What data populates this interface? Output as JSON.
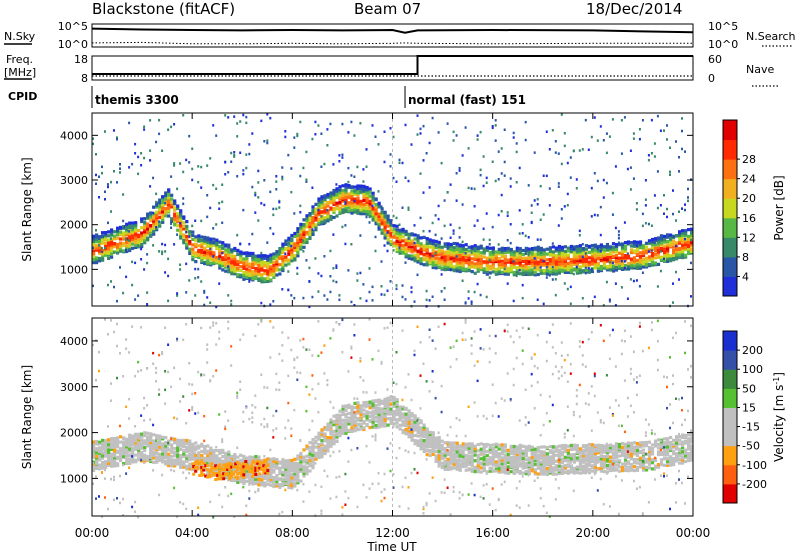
{
  "header": {
    "station": "Blackstone (fitACF)",
    "beam": "Beam 07",
    "date": "18/Dec/2014"
  },
  "chart_data": [
    {
      "type": "line",
      "panel": "nsky-nsearch",
      "left_label": "N.Sky",
      "right_label": "N.Search",
      "left_ticks": [
        "10^5",
        "10^0"
      ],
      "right_ticks": [
        "10^5",
        "10^0"
      ],
      "x": [
        0,
        2,
        4,
        6,
        8,
        10,
        12,
        12.5,
        13,
        16,
        20,
        24
      ],
      "series": [
        {
          "values": [
            4.0,
            3.8,
            3.7,
            3.6,
            3.7,
            3.6,
            3.7,
            3.1,
            3.6,
            3.7,
            3.6,
            3.2
          ]
        },
        {
          "values": [
            0.9,
            1.0,
            0.7,
            0.7,
            0.8,
            0.7,
            0.8,
            0.9,
            0.8,
            0.7,
            0.8,
            0.8
          ]
        }
      ]
    },
    {
      "type": "line",
      "panel": "freq-nave",
      "left_label_lines": [
        "Freq.",
        "[MHz]"
      ],
      "right_label": "Nave",
      "left_ticks": [
        "18",
        "8"
      ],
      "right_ticks": [
        "60",
        "0"
      ],
      "x": [
        0,
        13,
        13,
        24
      ],
      "series": [
        {
          "values": [
            10.5,
            10.5,
            18,
            18
          ]
        },
        {
          "values": [
            10,
            10,
            10,
            10
          ]
        }
      ]
    },
    {
      "type": "table",
      "panel": "cpid",
      "label": "CPID",
      "segments": [
        {
          "start": 0,
          "end": 12.5,
          "text": "themis 3300"
        },
        {
          "start": 12.5,
          "end": 24,
          "text": "normal (fast) 151"
        }
      ]
    },
    {
      "type": "heatmap",
      "panel": "power",
      "ylabel": "Slant Range [km]",
      "yticks": [
        1000,
        2000,
        3000,
        4000
      ],
      "ylim": [
        180,
        4500
      ],
      "xlim": [
        0,
        24
      ],
      "colorbar": {
        "label": "Power [dB]",
        "ticks": [
          "4",
          "8",
          "12",
          "16",
          "20",
          "24",
          "28"
        ],
        "colors": [
          "#2030d8",
          "#2a56a8",
          "#38886a",
          "#58b845",
          "#c8d820",
          "#f0b020",
          "#ff7010",
          "#ff2a00",
          "#e00000"
        ]
      },
      "bands": [
        {
          "x": [
            0,
            1,
            2,
            3,
            4,
            5,
            6,
            7,
            8,
            9,
            10,
            11,
            12,
            13,
            14,
            16,
            18,
            20,
            22,
            24
          ],
          "range": [
            1450,
            1650,
            1850,
            2500,
            1500,
            1350,
            1100,
            1000,
            1500,
            2300,
            2600,
            2550,
            1700,
            1450,
            1300,
            1200,
            1200,
            1250,
            1350,
            1650
          ],
          "value": 24
        }
      ]
    },
    {
      "type": "heatmap",
      "panel": "velocity",
      "ylabel": "Slant Range [km]",
      "yticks": [
        1000,
        2000,
        3000,
        4000
      ],
      "ylim": [
        180,
        4500
      ],
      "xlim": [
        0,
        24
      ],
      "xlabel": "Time UT",
      "xticks": [
        "00:00",
        "04:00",
        "08:00",
        "12:00",
        "16:00",
        "20:00",
        "00:00"
      ],
      "colorbar": {
        "label": "Velocity [m s",
        "label_sup": "-1",
        "label_end": "]",
        "ticks": [
          "200",
          "100",
          "50",
          "15",
          "-15",
          "-50",
          "-100",
          "-200"
        ],
        "colors": [
          "#1a2fd0",
          "#3550a8",
          "#3c8a3c",
          "#55c030",
          "#c0c0c0",
          "#c0c0c0",
          "#ffa010",
          "#ff6010",
          "#e00000"
        ]
      },
      "bands": [
        {
          "x": [
            0,
            2,
            4,
            6,
            8,
            10,
            12,
            14,
            18,
            22,
            24
          ],
          "range": [
            1500,
            1700,
            1500,
            1200,
            1100,
            2300,
            2500,
            1500,
            1400,
            1500,
            1700
          ],
          "value": 0
        },
        {
          "x": [
            4,
            5,
            6,
            7
          ],
          "range": [
            1300,
            1200,
            1250,
            1350
          ],
          "value": -50
        }
      ]
    }
  ]
}
